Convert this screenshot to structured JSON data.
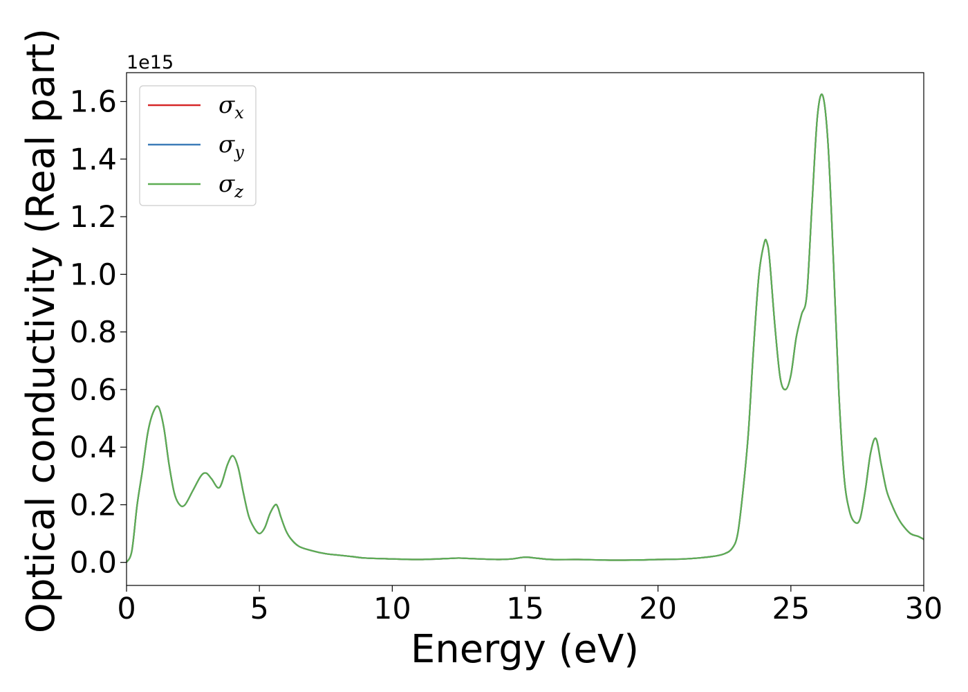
{
  "chart_data": {
    "type": "line",
    "title": "",
    "xlabel": "Energy (eV)",
    "ylabel": "Optical conductivity (Real part)",
    "y_offset_label": "1e15",
    "xlim": [
      0,
      30
    ],
    "ylim": [
      -0.08,
      1.7
    ],
    "x_ticks": [
      0,
      5,
      10,
      15,
      20,
      25,
      30
    ],
    "x_tick_labels": [
      "0",
      "5",
      "10",
      "15",
      "20",
      "25",
      "30"
    ],
    "y_ticks": [
      0.0,
      0.2,
      0.4,
      0.6,
      0.8,
      1.0,
      1.2,
      1.4,
      1.6
    ],
    "y_tick_labels": [
      "0.0",
      "0.2",
      "0.4",
      "0.6",
      "0.8",
      "1.0",
      "1.2",
      "1.4",
      "1.6"
    ],
    "grid": false,
    "legend_position": "top-left",
    "x": [
      0,
      0.2,
      0.4,
      0.6,
      0.8,
      1.0,
      1.2,
      1.4,
      1.6,
      1.8,
      2.0,
      2.2,
      2.5,
      2.8,
      3.0,
      3.2,
      3.5,
      3.8,
      4.0,
      4.2,
      4.4,
      4.6,
      4.8,
      5.0,
      5.2,
      5.4,
      5.6,
      5.7,
      5.8,
      6.0,
      6.2,
      6.5,
      7.0,
      7.5,
      8.0,
      8.5,
      9.0,
      10.0,
      11.0,
      12.0,
      12.5,
      13.0,
      14.0,
      14.5,
      15.0,
      15.5,
      16.0,
      17.0,
      18.0,
      19.0,
      20.0,
      21.0,
      22.0,
      22.5,
      22.8,
      23.0,
      23.2,
      23.4,
      23.6,
      23.8,
      24.0,
      24.1,
      24.2,
      24.4,
      24.6,
      24.8,
      25.0,
      25.2,
      25.4,
      25.6,
      25.8,
      26.0,
      26.2,
      26.4,
      26.6,
      26.8,
      27.0,
      27.2,
      27.4,
      27.6,
      27.8,
      28.0,
      28.2,
      28.4,
      28.6,
      28.8,
      29.0,
      29.2,
      29.5,
      29.8,
      30.0
    ],
    "series": [
      {
        "name": "σ",
        "subscript": "x",
        "color": "#d62728",
        "values": [
          0.0,
          0.04,
          0.2,
          0.32,
          0.45,
          0.52,
          0.54,
          0.47,
          0.34,
          0.24,
          0.2,
          0.2,
          0.25,
          0.3,
          0.31,
          0.29,
          0.26,
          0.34,
          0.37,
          0.33,
          0.24,
          0.16,
          0.12,
          0.1,
          0.12,
          0.17,
          0.2,
          0.19,
          0.16,
          0.11,
          0.08,
          0.055,
          0.04,
          0.03,
          0.025,
          0.02,
          0.015,
          0.012,
          0.01,
          0.013,
          0.015,
          0.013,
          0.01,
          0.012,
          0.018,
          0.014,
          0.01,
          0.01,
          0.008,
          0.008,
          0.01,
          0.012,
          0.02,
          0.03,
          0.05,
          0.1,
          0.25,
          0.45,
          0.75,
          1.0,
          1.11,
          1.11,
          1.05,
          0.82,
          0.64,
          0.6,
          0.65,
          0.78,
          0.86,
          0.93,
          1.25,
          1.55,
          1.62,
          1.45,
          1.05,
          0.6,
          0.3,
          0.18,
          0.14,
          0.15,
          0.25,
          0.38,
          0.43,
          0.34,
          0.25,
          0.2,
          0.16,
          0.13,
          0.1,
          0.09,
          0.08
        ]
      },
      {
        "name": "σ",
        "subscript": "y",
        "color": "#3b7bb8",
        "values": [
          0.0,
          0.04,
          0.2,
          0.32,
          0.45,
          0.52,
          0.54,
          0.47,
          0.34,
          0.24,
          0.2,
          0.2,
          0.25,
          0.3,
          0.31,
          0.29,
          0.26,
          0.34,
          0.37,
          0.33,
          0.24,
          0.16,
          0.12,
          0.1,
          0.12,
          0.17,
          0.2,
          0.19,
          0.16,
          0.11,
          0.08,
          0.055,
          0.04,
          0.03,
          0.025,
          0.02,
          0.015,
          0.012,
          0.01,
          0.013,
          0.015,
          0.013,
          0.01,
          0.012,
          0.018,
          0.014,
          0.01,
          0.01,
          0.008,
          0.008,
          0.01,
          0.012,
          0.02,
          0.03,
          0.05,
          0.1,
          0.25,
          0.45,
          0.75,
          1.0,
          1.11,
          1.11,
          1.05,
          0.82,
          0.64,
          0.6,
          0.65,
          0.78,
          0.86,
          0.93,
          1.25,
          1.55,
          1.62,
          1.45,
          1.05,
          0.6,
          0.3,
          0.18,
          0.14,
          0.15,
          0.25,
          0.38,
          0.43,
          0.34,
          0.25,
          0.2,
          0.16,
          0.13,
          0.1,
          0.09,
          0.08
        ]
      },
      {
        "name": "σ",
        "subscript": "z",
        "color": "#5cad52",
        "values": [
          0.0,
          0.04,
          0.2,
          0.32,
          0.45,
          0.52,
          0.54,
          0.47,
          0.34,
          0.24,
          0.2,
          0.2,
          0.25,
          0.3,
          0.31,
          0.29,
          0.26,
          0.34,
          0.37,
          0.33,
          0.24,
          0.16,
          0.12,
          0.1,
          0.12,
          0.17,
          0.2,
          0.19,
          0.16,
          0.11,
          0.08,
          0.055,
          0.04,
          0.03,
          0.025,
          0.02,
          0.015,
          0.012,
          0.01,
          0.013,
          0.015,
          0.013,
          0.01,
          0.012,
          0.018,
          0.014,
          0.01,
          0.01,
          0.008,
          0.008,
          0.01,
          0.012,
          0.02,
          0.03,
          0.05,
          0.1,
          0.25,
          0.45,
          0.75,
          1.0,
          1.11,
          1.11,
          1.05,
          0.82,
          0.64,
          0.6,
          0.65,
          0.78,
          0.86,
          0.93,
          1.25,
          1.55,
          1.62,
          1.45,
          1.05,
          0.6,
          0.3,
          0.18,
          0.14,
          0.15,
          0.25,
          0.38,
          0.43,
          0.34,
          0.25,
          0.2,
          0.16,
          0.13,
          0.1,
          0.09,
          0.08
        ]
      }
    ]
  }
}
